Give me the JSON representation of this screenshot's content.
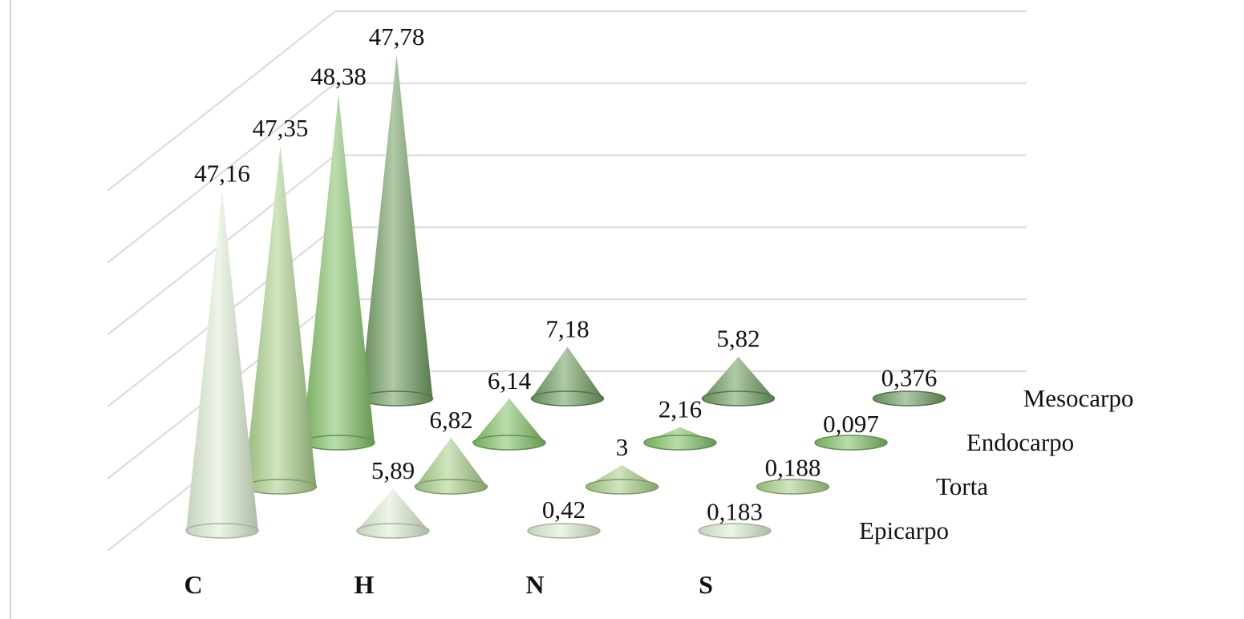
{
  "chart_data": {
    "type": "bar",
    "shape": "cone",
    "projection": "3d",
    "categories": [
      "C",
      "H",
      "N",
      "S"
    ],
    "series": [
      {
        "name": "Epicarpo",
        "values": [
          47.16,
          5.89,
          0.42,
          0.183
        ]
      },
      {
        "name": "Torta",
        "values": [
          47.35,
          6.82,
          3,
          0.188
        ]
      },
      {
        "name": "Endocarpo",
        "values": [
          48.38,
          6.14,
          2.16,
          0.097
        ]
      },
      {
        "name": "Mesocarpo",
        "values": [
          47.78,
          7.18,
          5.82,
          0.376
        ]
      }
    ],
    "data_labels": [
      [
        "47,16",
        "5,89",
        "0,42",
        "0,183"
      ],
      [
        "47,35",
        "6,82",
        "3",
        "0,188"
      ],
      [
        "48,38",
        "6,14",
        "2,16",
        "0,097"
      ],
      [
        "47,78",
        "7,18",
        "5,82",
        "0,376"
      ]
    ],
    "ylim": [
      0,
      50
    ],
    "grid": true,
    "legend": "series labels on depth axis (right)",
    "colors": [
      "#dfeed5",
      "#a9d08a",
      "#82c266",
      "#6f9c5f"
    ]
  }
}
